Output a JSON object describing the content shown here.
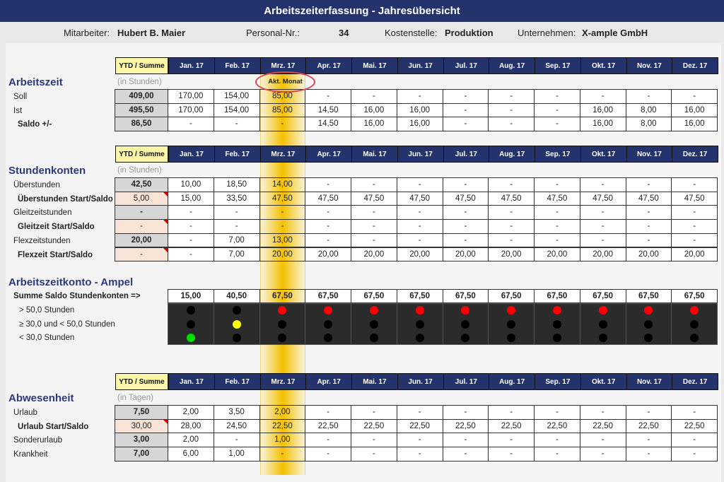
{
  "title": "Arbeitszeiterfassung - Jahresübersicht",
  "info": {
    "mitarbeiter_label": "Mitarbeiter:",
    "mitarbeiter": "Hubert B. Maier",
    "personal_label": "Personal-Nr.:",
    "personal": "34",
    "kosten_label": "Kostenstelle:",
    "kosten": "Produktion",
    "unternehmen_label": "Unternehmen:",
    "unternehmen": "X-ample GmbH"
  },
  "ytd_header": "YTD / Summe",
  "months": [
    "Jan. 17",
    "Feb. 17",
    "Mrz. 17",
    "Apr. 17",
    "Mai. 17",
    "Jun. 17",
    "Jul. 17",
    "Aug. 17",
    "Sep. 17",
    "Okt. 17",
    "Nov. 17",
    "Dez. 17"
  ],
  "current_month_label": "Akt. Monat",
  "highlight_color": "#f5c000",
  "sections": [
    {
      "title": "Arbeitszeit",
      "unit": "(in Stunden)",
      "rows": [
        {
          "label": "Soll",
          "bold": false,
          "ytd": "409,00",
          "ytd_type": "sum",
          "values": [
            "170,00",
            "154,00",
            "85,00",
            "-",
            "-",
            "-",
            "-",
            "-",
            "-",
            "-",
            "-",
            "-"
          ]
        },
        {
          "label": "Ist",
          "bold": false,
          "ytd": "495,50",
          "ytd_type": "sum",
          "values": [
            "170,00",
            "154,00",
            "85,00",
            "14,50",
            "16,00",
            "16,00",
            "-",
            "-",
            "-",
            "16,00",
            "8,00",
            "16,00"
          ]
        },
        {
          "label": "Saldo +/-",
          "bold": true,
          "ytd": "86,50",
          "ytd_type": "sum",
          "values": [
            "-",
            "-",
            "-",
            "14,50",
            "16,00",
            "16,00",
            "-",
            "-",
            "-",
            "16,00",
            "8,00",
            "16,00"
          ]
        }
      ]
    },
    {
      "title": "Stundenkonten",
      "unit": "(in Stunden)",
      "rows": [
        {
          "label": "Überstunden",
          "bold": false,
          "ytd": "42,50",
          "ytd_type": "sum",
          "values": [
            "10,00",
            "18,50",
            "14,00",
            "-",
            "-",
            "-",
            "-",
            "-",
            "-",
            "-",
            "-",
            "-"
          ]
        },
        {
          "label": "Überstunden Start/Saldo",
          "bold": true,
          "ytd": "5,00",
          "ytd_type": "start",
          "values": [
            "15,00",
            "33,50",
            "47,50",
            "47,50",
            "47,50",
            "47,50",
            "47,50",
            "47,50",
            "47,50",
            "47,50",
            "47,50",
            "47,50"
          ]
        },
        {
          "label": "Gleitzeitstunden",
          "bold": false,
          "ytd": "-",
          "ytd_type": "sum",
          "values": [
            "-",
            "-",
            "-",
            "-",
            "-",
            "-",
            "-",
            "-",
            "-",
            "-",
            "-",
            "-"
          ]
        },
        {
          "label": "Gleitzeit Start/Saldo",
          "bold": true,
          "ytd": "-",
          "ytd_type": "start",
          "values": [
            "-",
            "-",
            "-",
            "-",
            "-",
            "-",
            "-",
            "-",
            "-",
            "-",
            "-",
            "-"
          ]
        },
        {
          "label": "Flexzeitstunden",
          "bold": false,
          "ytd": "20,00",
          "ytd_type": "sum",
          "values": [
            "-",
            "7,00",
            "13,00",
            "-",
            "-",
            "-",
            "-",
            "-",
            "-",
            "-",
            "-",
            "-"
          ]
        },
        {
          "label": "Flexzeit Start/Saldo",
          "bold": true,
          "ytd": "-",
          "ytd_type": "start",
          "values": [
            "-",
            "7,00",
            "20,00",
            "20,00",
            "20,00",
            "20,00",
            "20,00",
            "20,00",
            "20,00",
            "20,00",
            "20,00",
            "20,00"
          ]
        }
      ]
    },
    {
      "title": "Abwesenheit",
      "unit": "(in Tagen)",
      "rows": [
        {
          "label": "Urlaub",
          "bold": false,
          "ytd": "7,50",
          "ytd_type": "sum",
          "values": [
            "2,00",
            "3,50",
            "2,00",
            "-",
            "-",
            "-",
            "-",
            "-",
            "-",
            "-",
            "-",
            "-"
          ]
        },
        {
          "label": "Urlaub Start/Saldo",
          "bold": true,
          "ytd": "30,00",
          "ytd_type": "start",
          "values": [
            "28,00",
            "24,50",
            "22,50",
            "22,50",
            "22,50",
            "22,50",
            "22,50",
            "22,50",
            "22,50",
            "22,50",
            "22,50",
            "22,50"
          ]
        },
        {
          "label": "Sonderurlaub",
          "bold": false,
          "ytd": "3,00",
          "ytd_type": "sum",
          "values": [
            "2,00",
            "-",
            "1,00",
            "-",
            "-",
            "-",
            "-",
            "-",
            "-",
            "-",
            "-",
            "-"
          ]
        },
        {
          "label": "Krankheit",
          "bold": false,
          "ytd": "7,00",
          "ytd_type": "sum",
          "values": [
            "6,00",
            "1,00",
            "-",
            "-",
            "-",
            "-",
            "-",
            "-",
            "-",
            "-",
            "-",
            "-"
          ]
        }
      ]
    }
  ],
  "ampel": {
    "title": "Arbeitszeitkonto - Ampel",
    "sum_label": "Summe Saldo Stundenkonten =>",
    "sums": [
      "15,00",
      "40,50",
      "67,50",
      "67,50",
      "67,50",
      "67,50",
      "67,50",
      "67,50",
      "67,50",
      "67,50",
      "67,50",
      "67,50"
    ],
    "levels": [
      "> 50,0 Stunden",
      "≥ 30,0 und < 50,0 Stunden",
      "< 30,0 Stunden"
    ],
    "states": [
      "green",
      "yellow",
      "red",
      "red",
      "red",
      "red",
      "red",
      "red",
      "red",
      "red",
      "red",
      "red"
    ],
    "colors": {
      "red": "#ff0000",
      "yellow": "#ffff00",
      "green": "#00e000",
      "off": "#000000"
    }
  }
}
